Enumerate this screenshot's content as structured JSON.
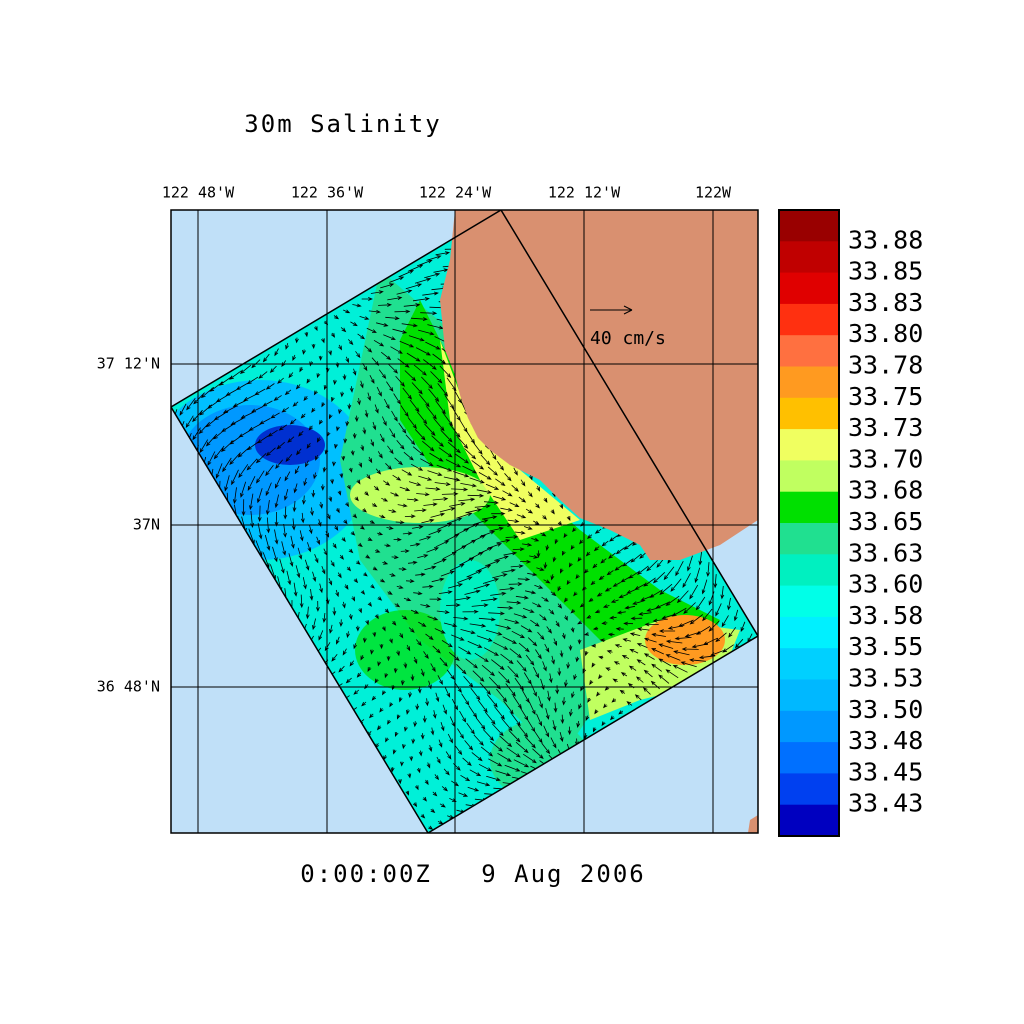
{
  "title": "30m Salinity",
  "longitude_labels": [
    "122 48'W",
    "122 36'W",
    "122 24'W",
    "122 12'W",
    "122W"
  ],
  "latitude_labels": [
    "37 12'N",
    "37N",
    "36 48'N"
  ],
  "vector_scale_label": "40 cm/s",
  "timestamp": "0:00:00Z   9 Aug 2006",
  "colorbar": {
    "labels": [
      "33.88",
      "33.85",
      "33.83",
      "33.80",
      "33.78",
      "33.75",
      "33.73",
      "33.70",
      "33.68",
      "33.65",
      "33.63",
      "33.60",
      "33.58",
      "33.55",
      "33.53",
      "33.50",
      "33.48",
      "33.45",
      "33.43"
    ],
    "colors": [
      "#990000",
      "#c00000",
      "#e00000",
      "#ff3010",
      "#ff7040",
      "#ff9a20",
      "#ffc000",
      "#f0ff60",
      "#c0ff60",
      "#00e000",
      "#20e090",
      "#00f0c0",
      "#00ffe8",
      "#00f0ff",
      "#00d0ff",
      "#00b8ff",
      "#0098ff",
      "#0070ff",
      "#0040f0",
      "#0000c0"
    ]
  }
}
